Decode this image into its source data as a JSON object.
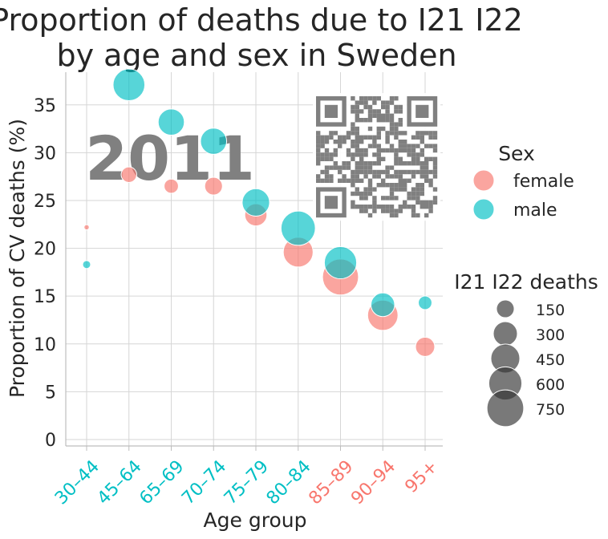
{
  "chart_data": {
    "type": "scatter",
    "title": "Proportion of deaths due to I21 I22\nby age and sex in Sweden",
    "xlabel": "Age group",
    "ylabel": "Proportion of CV deaths (%)",
    "categories": [
      "30–44",
      "45–64",
      "65–69",
      "70–74",
      "75–79",
      "80–84",
      "85–89",
      "90–94",
      "95+"
    ],
    "category_colors": [
      "#00bfc4",
      "#00bfc4",
      "#00bfc4",
      "#00bfc4",
      "#00bfc4",
      "#00bfc4",
      "#f8766d",
      "#f8766d",
      "#f8766d"
    ],
    "ylim": [
      0,
      38
    ],
    "yticks": [
      0,
      5,
      10,
      15,
      20,
      25,
      30,
      35
    ],
    "grid": true,
    "annotation": "2011",
    "series": [
      {
        "name": "female",
        "color": "#f8766d",
        "values": [
          22.2,
          27.7,
          26.5,
          26.5,
          23.5,
          19.6,
          17.0,
          13.0,
          9.7
        ],
        "deaths": [
          5,
          110,
          90,
          150,
          250,
          480,
          720,
          500,
          180
        ]
      },
      {
        "name": "male",
        "color": "#00bfc4",
        "values": [
          18.3,
          37.1,
          33.2,
          31.2,
          24.8,
          22.1,
          18.5,
          14.1,
          14.3
        ],
        "deaths": [
          20,
          550,
          360,
          360,
          400,
          650,
          570,
          290,
          80
        ]
      }
    ],
    "legend_hue": {
      "title": "Sex",
      "entries": [
        {
          "label": "female",
          "color": "#f8766d"
        },
        {
          "label": "male",
          "color": "#00bfc4"
        }
      ]
    },
    "legend_size": {
      "title": "I21 I22 deaths",
      "entries": [
        150,
        300,
        450,
        600,
        750
      ]
    },
    "legend_placement": "right"
  }
}
